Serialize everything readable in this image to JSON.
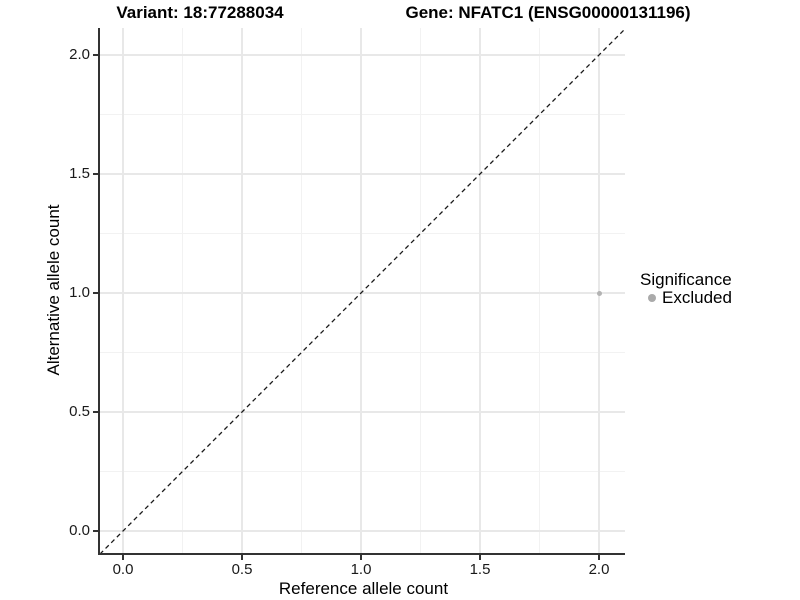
{
  "chart_data": {
    "type": "scatter",
    "title_variant": "Variant: 18:77288034",
    "title_gene": "Gene: NFATC1 (ENSG00000131196)",
    "xlabel": "Reference allele count",
    "ylabel": "Alternative allele count",
    "xlim": [
      -0.097,
      2.11
    ],
    "ylim": [
      -0.092,
      2.11
    ],
    "x_ticks": [
      0.0,
      0.5,
      1.0,
      1.5,
      2.0
    ],
    "x_tick_labels": [
      "0.0",
      "0.5",
      "1.0",
      "1.5",
      "2.0"
    ],
    "y_ticks": [
      0.0,
      0.5,
      1.0,
      1.5,
      2.0
    ],
    "y_tick_labels": [
      "0.0",
      "0.5",
      "1.0",
      "1.5",
      "2.0"
    ],
    "x_minor_ticks": [
      0.25,
      0.75,
      1.25,
      1.75
    ],
    "y_minor_ticks": [
      0.25,
      0.75,
      1.25,
      1.75
    ],
    "grid": true,
    "identity_line": {
      "style": "dashed",
      "slope": 1,
      "intercept": 0
    },
    "points": [
      {
        "x": 2.0,
        "y": 1.0,
        "significance": "Excluded"
      }
    ],
    "legend": {
      "title": "Significance",
      "position": "right",
      "entries": [
        {
          "label": "Excluded",
          "color": "#aaaaaa"
        }
      ]
    },
    "colors": {
      "point": "#b3b3b3",
      "legend_key": "#aaaaaa",
      "grid_major": "#e8e8e8",
      "grid_minor": "#f2f2f2",
      "axis_line": "#333333",
      "dashed_line": "#1a1a1a"
    }
  }
}
